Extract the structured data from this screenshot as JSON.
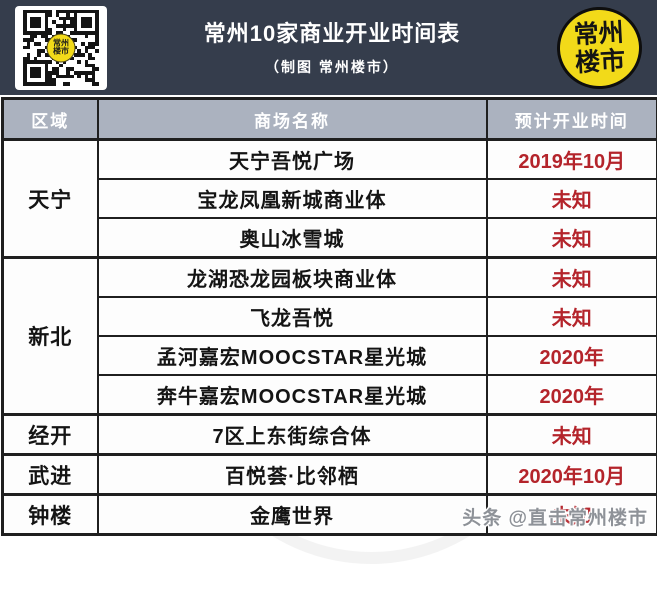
{
  "banner": {
    "title": "常州10家商业开业时间表",
    "subtitle": "（制图 常州楼市）",
    "logo": {
      "line1": "常州",
      "line2": "楼市"
    },
    "qr_badge": {
      "line1": "常州",
      "line2": "楼市"
    }
  },
  "chart_data": {
    "type": "table",
    "title": "常州10家商业开业时间表",
    "subtitle": "制图 常州楼市",
    "columns": [
      "区域",
      "商场名称",
      "预计开业时间"
    ],
    "rows": [
      [
        "天宁",
        "天宁吾悦广场",
        "2019年10月"
      ],
      [
        "天宁",
        "宝龙凤凰新城商业体",
        "未知"
      ],
      [
        "天宁",
        "奥山冰雪城",
        "未知"
      ],
      [
        "新北",
        "龙湖恐龙园板块商业体",
        "未知"
      ],
      [
        "新北",
        "飞龙吾悦",
        "未知"
      ],
      [
        "新北",
        "孟河嘉宏MOOCSTAR星光城",
        "2020年"
      ],
      [
        "新北",
        "奔牛嘉宏MOOCSTAR星光城",
        "2020年"
      ],
      [
        "经开",
        "7区上东街综合体",
        "未知"
      ],
      [
        "武进",
        "百悦荟·比邻栖",
        "2020年10月"
      ],
      [
        "钟楼",
        "金鹰世界",
        "未知"
      ]
    ],
    "region_rowspans": {
      "天宁": 3,
      "新北": 4,
      "经开": 1,
      "武进": 1,
      "钟楼": 1
    },
    "value_color_note": "all values in 预计开业时间 column rendered red"
  },
  "watermarks": {
    "stamp_line1": "常州",
    "stamp_line2": "楼市",
    "toutiao": "头条 @直击常州楼市"
  },
  "colors": {
    "banner_bg": "#353d4c",
    "table_header_bg": "#abb2bf",
    "accent_red": "#b4242b",
    "logo_yellow": "#f2da19",
    "border_dark": "#1f1f1f"
  }
}
